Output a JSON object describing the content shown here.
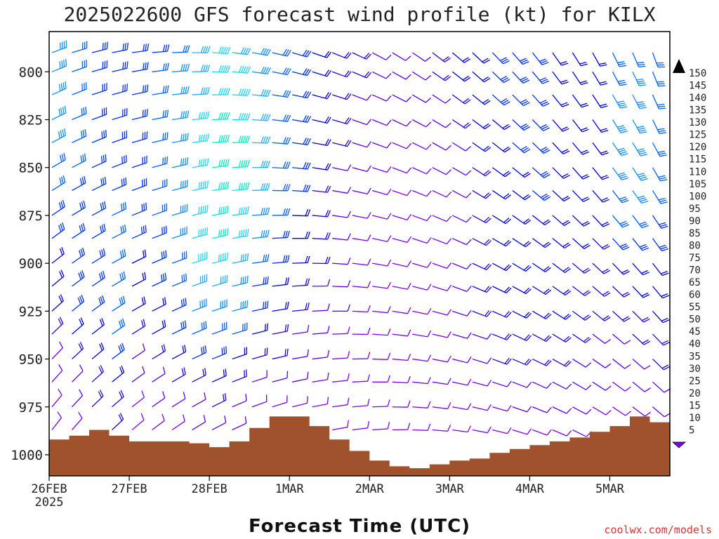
{
  "header": {
    "title": "2025022600 GFS forecast wind profile (kt) for KILX",
    "xlabel": "Forecast Time (UTC)",
    "credit": "coolwx.com/models"
  },
  "chart_data": {
    "type": "wind-barb-profile",
    "title": "2025022600 GFS forecast wind profile (kt) for KILX",
    "xlabel": "Forecast Time (UTC)",
    "ylabel": "",
    "units": "kt",
    "y_inverted": true,
    "ylim": [
      1011,
      779
    ],
    "xlim_hours": [
      0,
      186
    ],
    "x_ticks": [
      {
        "hour": 0,
        "label": "26FEB",
        "sublabel": "2025"
      },
      {
        "hour": 24,
        "label": "27FEB",
        "sublabel": ""
      },
      {
        "hour": 48,
        "label": "28FEB",
        "sublabel": ""
      },
      {
        "hour": 72,
        "label": "1MAR",
        "sublabel": ""
      },
      {
        "hour": 96,
        "label": "2MAR",
        "sublabel": ""
      },
      {
        "hour": 120,
        "label": "3MAR",
        "sublabel": ""
      },
      {
        "hour": 144,
        "label": "4MAR",
        "sublabel": ""
      },
      {
        "hour": 168,
        "label": "5MAR",
        "sublabel": ""
      }
    ],
    "y_ticks": [
      {
        "value": 800,
        "label": "800"
      },
      {
        "value": 825,
        "label": "825"
      },
      {
        "value": 850,
        "label": "850"
      },
      {
        "value": 875,
        "label": "875"
      },
      {
        "value": 900,
        "label": "900"
      },
      {
        "value": 925,
        "label": "925"
      },
      {
        "value": 950,
        "label": "950"
      },
      {
        "value": 975,
        "label": "975"
      },
      {
        "value": 1000,
        "label": "1000"
      }
    ],
    "colorbar": {
      "levels": [
        5,
        10,
        15,
        20,
        25,
        30,
        35,
        40,
        45,
        50,
        55,
        60,
        65,
        70,
        75,
        80,
        85,
        90,
        95,
        100,
        105,
        110,
        115,
        120,
        125,
        130,
        135,
        140,
        145,
        150
      ],
      "labels": [
        "5",
        "10",
        "15",
        "20",
        "25",
        "30",
        "35",
        "40",
        "45",
        "50",
        "55",
        "60",
        "65",
        "70",
        "75",
        "80",
        "85",
        "90",
        "95",
        "100",
        "105",
        "110",
        "115",
        "120",
        "125",
        "130",
        "135",
        "140",
        "145",
        "150"
      ],
      "colors": [
        "#7a00f0",
        "#5a00e8",
        "#2a00d8",
        "#0000d8",
        "#0030f0",
        "#0060ff",
        "#1090ff",
        "#20b0ff",
        "#20d8f0",
        "#00f0c0",
        "#00f080",
        "#10e040",
        "#30e000",
        "#80ff00",
        "#c0ff00",
        "#ffff00",
        "#ffe000",
        "#ffc800",
        "#ffaa00",
        "#ff9000",
        "#ff7800",
        "#ff5800",
        "#ff3000",
        "#ff0000",
        "#ff0060",
        "#ff0090",
        "#ff00c0",
        "#ff20e0",
        "#ff40ff",
        "#ff60ff"
      ]
    },
    "surface_pressure": {
      "color": "#a0522d",
      "hours": [
        0,
        6,
        12,
        18,
        24,
        30,
        36,
        42,
        48,
        54,
        60,
        66,
        72,
        78,
        84,
        90,
        96,
        102,
        108,
        114,
        120,
        126,
        132,
        138,
        144,
        150,
        156,
        162,
        168,
        174,
        180,
        186
      ],
      "values": [
        992,
        990,
        987,
        990,
        993,
        993,
        993,
        994,
        996,
        993,
        986,
        980,
        980,
        985,
        992,
        998,
        1003,
        1006,
        1007,
        1005,
        1003,
        1002,
        999,
        997,
        995,
        993,
        991,
        988,
        985,
        980,
        983,
        985
      ]
    },
    "wind_profile": {
      "hours": [
        0,
        6,
        12,
        18,
        24,
        30,
        36,
        42,
        48,
        54,
        60,
        66,
        72,
        78,
        84,
        90,
        96,
        102,
        108,
        114,
        120,
        126,
        132,
        138,
        144,
        150,
        156,
        162,
        168,
        174,
        180
      ],
      "levels": [
        790,
        800,
        812,
        825,
        837,
        850,
        862,
        875,
        887,
        900,
        912,
        925,
        937,
        950,
        962,
        975,
        987
      ],
      "speed_kt": [
        [
          36,
          38,
          38,
          37,
          36,
          33,
          30,
          28,
          26,
          24,
          22,
          21,
          18,
          14,
          11,
          9,
          7
        ],
        [
          30,
          30,
          31,
          31,
          31,
          30,
          29,
          27,
          27,
          27,
          26,
          25,
          21,
          16,
          13,
          11,
          9
        ],
        [
          27,
          27,
          27,
          28,
          28,
          28,
          28,
          27,
          27,
          27,
          27,
          26,
          24,
          21,
          18,
          15,
          12
        ],
        [
          25,
          25,
          26,
          26,
          27,
          27,
          28,
          30,
          32,
          33,
          34,
          34,
          31,
          28,
          24,
          19,
          15
        ],
        [
          25,
          25,
          26,
          26,
          26,
          26,
          26,
          26,
          25,
          24,
          22,
          20,
          17,
          14,
          11,
          9,
          7
        ],
        [
          29,
          30,
          31,
          31,
          31,
          31,
          31,
          30,
          29,
          28,
          26,
          23,
          20,
          16,
          13,
          11,
          8
        ],
        [
          34,
          35,
          36,
          36,
          37,
          37,
          37,
          36,
          35,
          34,
          32,
          29,
          25,
          20,
          16,
          12,
          9
        ],
        [
          41,
          43,
          44,
          45,
          46,
          47,
          48,
          48,
          47,
          45,
          42,
          38,
          32,
          25,
          19,
          14,
          11
        ],
        [
          46,
          48,
          49,
          51,
          52,
          53,
          53,
          53,
          51,
          48,
          44,
          39,
          33,
          26,
          20,
          15,
          11
        ],
        [
          44,
          45,
          47,
          48,
          50,
          50,
          50,
          48,
          46,
          43,
          39,
          35,
          30,
          24,
          18,
          14,
          10
        ],
        [
          38,
          39,
          40,
          41,
          42,
          42,
          41,
          39,
          36,
          33,
          29,
          26,
          22,
          18,
          14,
          11,
          8
        ],
        [
          32,
          33,
          33,
          34,
          34,
          34,
          33,
          31,
          28,
          26,
          24,
          21,
          18,
          15,
          12,
          9,
          7
        ],
        [
          27,
          27,
          27,
          27,
          27,
          26,
          25,
          24,
          22,
          20,
          18,
          16,
          14,
          12,
          10,
          8,
          6
        ],
        [
          22,
          22,
          22,
          21,
          21,
          20,
          19,
          18,
          16,
          15,
          13,
          12,
          11,
          10,
          9,
          8,
          6
        ],
        [
          19,
          18,
          17,
          16,
          15,
          14,
          13,
          12,
          11,
          10,
          10,
          10,
          9,
          8,
          7,
          6,
          5
        ],
        [
          16,
          15,
          14,
          13,
          12,
          11,
          10,
          9,
          9,
          8,
          8,
          8,
          8,
          7,
          6,
          5,
          5
        ],
        [
          14,
          13,
          12,
          11,
          10,
          9,
          9,
          8,
          8,
          8,
          8,
          8,
          7,
          7,
          6,
          5,
          5
        ],
        [
          12,
          11,
          10,
          10,
          9,
          9,
          8,
          8,
          8,
          8,
          7,
          7,
          7,
          6,
          6,
          5,
          5
        ],
        [
          13,
          12,
          11,
          10,
          9,
          8,
          8,
          8,
          8,
          8,
          8,
          8,
          7,
          7,
          6,
          5,
          5
        ],
        [
          18,
          16,
          14,
          12,
          11,
          10,
          9,
          9,
          9,
          9,
          9,
          9,
          8,
          7,
          6,
          5,
          5
        ],
        [
          22,
          20,
          18,
          16,
          14,
          13,
          12,
          11,
          11,
          11,
          11,
          11,
          10,
          9,
          7,
          6,
          5
        ],
        [
          24,
          23,
          22,
          21,
          20,
          19,
          18,
          17,
          17,
          17,
          16,
          15,
          13,
          11,
          9,
          7,
          6
        ],
        [
          26,
          25,
          25,
          24,
          24,
          23,
          22,
          21,
          21,
          21,
          20,
          19,
          17,
          15,
          12,
          9,
          7
        ],
        [
          26,
          26,
          26,
          25,
          25,
          24,
          24,
          23,
          23,
          22,
          21,
          20,
          18,
          16,
          13,
          10,
          8
        ],
        [
          25,
          25,
          25,
          25,
          25,
          25,
          25,
          24,
          24,
          23,
          22,
          21,
          19,
          17,
          14,
          11,
          9
        ],
        [
          24,
          24,
          24,
          24,
          24,
          24,
          24,
          24,
          23,
          22,
          21,
          20,
          18,
          16,
          13,
          11,
          9
        ],
        [
          22,
          22,
          22,
          22,
          22,
          22,
          21,
          21,
          20,
          19,
          18,
          17,
          16,
          14,
          12,
          10,
          8
        ],
        [
          20,
          20,
          21,
          21,
          21,
          21,
          20,
          20,
          19,
          18,
          17,
          16,
          14,
          12,
          10,
          9,
          7
        ],
        [
          33,
          34,
          36,
          37,
          37,
          36,
          34,
          31,
          27,
          22,
          18,
          15,
          13,
          11,
          9,
          8,
          6
        ],
        [
          34,
          35,
          36,
          37,
          38,
          37,
          35,
          32,
          28,
          24,
          20,
          17,
          15,
          13,
          11,
          10,
          8
        ],
        [
          30,
          31,
          32,
          32,
          32,
          31,
          30,
          28,
          26,
          24,
          22,
          20,
          18,
          16,
          14,
          12,
          10
        ]
      ]
    }
  }
}
